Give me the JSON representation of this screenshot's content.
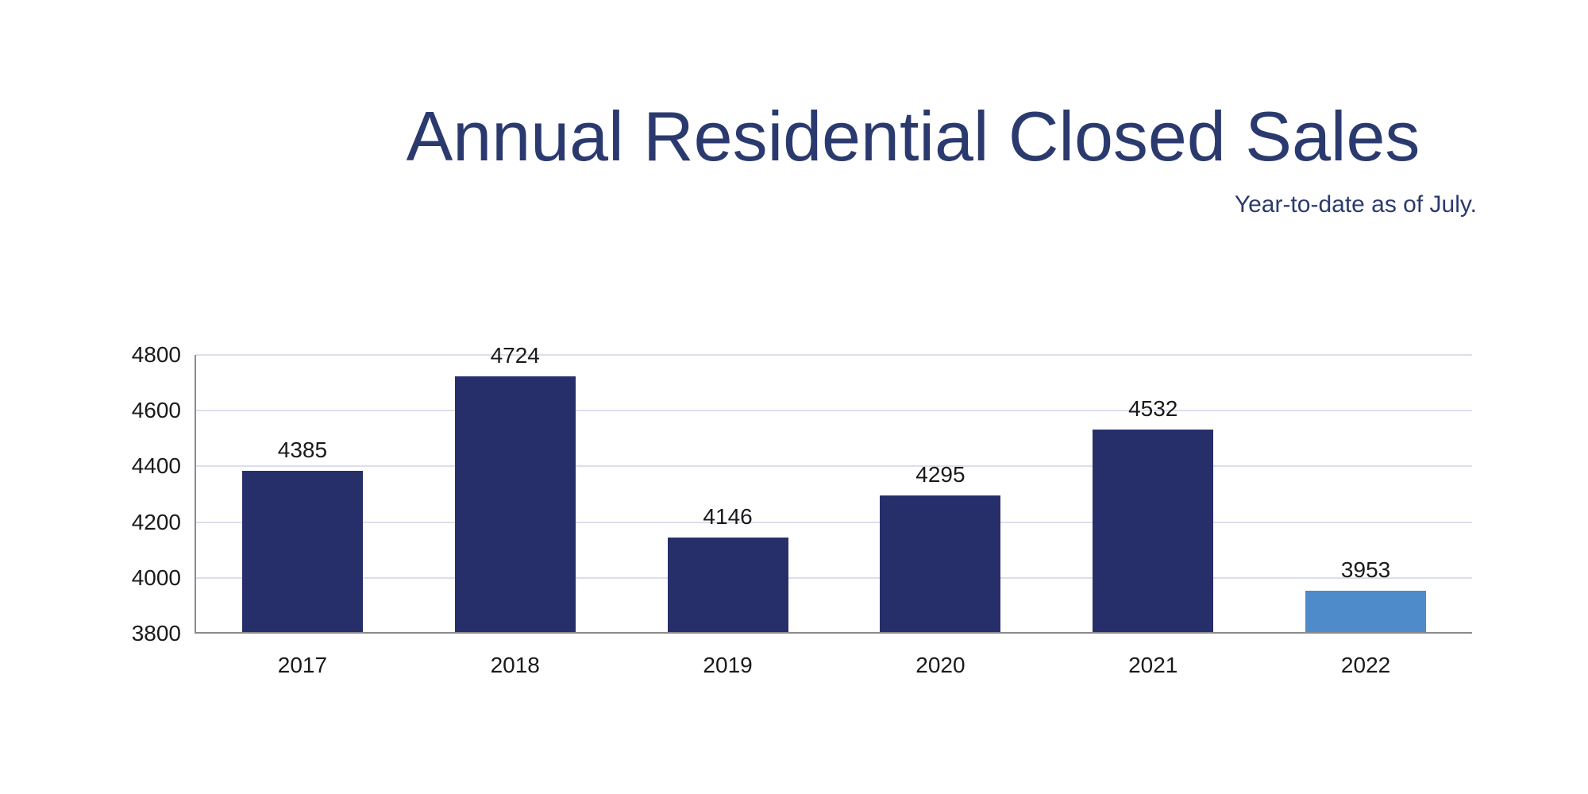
{
  "header": {
    "title": "Annual Residential Closed Sales",
    "subtitle": "Year-to-date as of July."
  },
  "colors": {
    "title_text": "#2b3a6e",
    "bar_default": "#272f6b",
    "bar_highlight": "#4d8bca",
    "gridline": "#dbdfed",
    "axis_line": "#8b8b8b",
    "tick_text": "#1a1a1a"
  },
  "chart_data": {
    "type": "bar",
    "title": "Annual Residential Closed Sales",
    "subtitle": "Year-to-date as of July.",
    "categories": [
      "2017",
      "2018",
      "2019",
      "2020",
      "2021",
      "2022"
    ],
    "values": [
      4385,
      4724,
      4146,
      4295,
      4532,
      3953
    ],
    "data_labels": [
      4385,
      4724,
      4146,
      4295,
      4532,
      3953
    ],
    "highlight_category": "2022",
    "xlabel": "",
    "ylabel": "",
    "ylim": [
      3800,
      4800
    ],
    "yticks": [
      3800,
      4000,
      4200,
      4400,
      4600,
      4800
    ],
    "ytick_interval": 200,
    "grid": true,
    "legend": false
  }
}
